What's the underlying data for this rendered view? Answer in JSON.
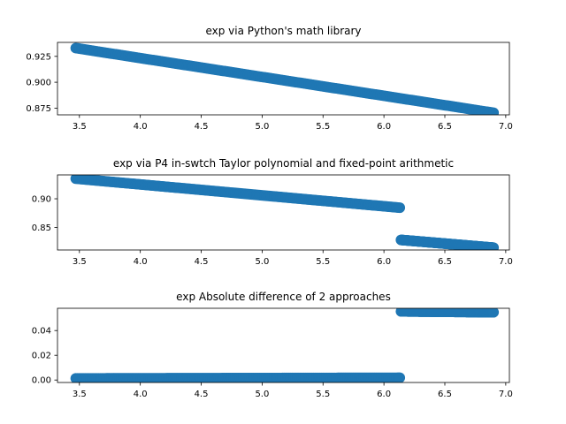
{
  "chart_data": [
    {
      "type": "scatter",
      "title": "exp via Python's math library",
      "xlabel": "",
      "ylabel": "",
      "xlim": [
        3.32,
        7.03
      ],
      "ylim": [
        0.8685,
        0.9385
      ],
      "xticks": [
        "3.5",
        "4.0",
        "4.5",
        "5.0",
        "5.5",
        "6.0",
        "6.5",
        "7.0"
      ],
      "yticks": [
        "0.875",
        "0.900",
        "0.925"
      ],
      "color": "#1f77b4",
      "series": [
        {
          "segments": [
            {
              "x": [
                3.47,
                6.9
              ],
              "y": [
                0.933,
                0.8705
              ]
            }
          ]
        }
      ]
    },
    {
      "type": "scatter",
      "title": "exp via P4 in-swtch Taylor polynomial and fixed-point arithmetic",
      "xlabel": "",
      "ylabel": "",
      "xlim": [
        3.32,
        7.03
      ],
      "ylim": [
        0.811,
        0.9415
      ],
      "xticks": [
        "3.5",
        "4.0",
        "4.5",
        "5.0",
        "5.5",
        "6.0",
        "6.5",
        "7.0"
      ],
      "yticks": [
        "0.85",
        "0.90"
      ],
      "color": "#1f77b4",
      "series": [
        {
          "segments": [
            {
              "x": [
                3.47,
                6.13
              ],
              "y": [
                0.935,
                0.8845
              ]
            },
            {
              "x": [
                6.14,
                6.9
              ],
              "y": [
                0.8285,
                0.815
              ]
            }
          ]
        }
      ]
    },
    {
      "type": "scatter",
      "title": "exp Absolute difference of 2 approaches",
      "xlabel": "",
      "ylabel": "",
      "xlim": [
        3.32,
        7.03
      ],
      "ylim": [
        -0.002,
        0.058
      ],
      "xticks": [
        "3.5",
        "4.0",
        "4.5",
        "5.0",
        "5.5",
        "6.0",
        "6.5",
        "7.0"
      ],
      "yticks": [
        "0.00",
        "0.02",
        "0.04"
      ],
      "color": "#1f77b4",
      "series": [
        {
          "segments": [
            {
              "x": [
                3.47,
                6.13
              ],
              "y": [
                0.0013,
                0.0018
              ]
            },
            {
              "x": [
                6.14,
                6.9
              ],
              "y": [
                0.0555,
                0.0548
              ]
            }
          ]
        }
      ]
    }
  ]
}
